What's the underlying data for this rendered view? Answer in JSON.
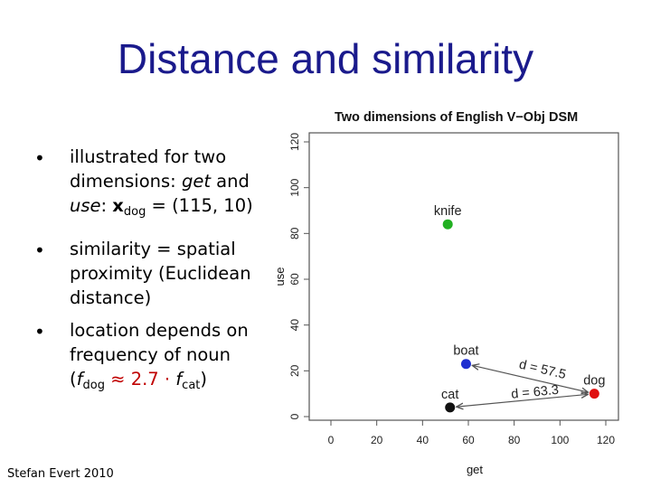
{
  "slide": {
    "title": "Distance and similarity",
    "footer": "Stefan Evert 2010",
    "bullets": [
      {
        "marker": "•",
        "line1": "illustrated for two",
        "line2a": "dimensions: ",
        "line2b": "get",
        "line2c": " and",
        "line3a": "use",
        "line3b": ": ",
        "line3c": "x",
        "line3d": "dog",
        "line3e": " = (115, 10)"
      },
      {
        "marker": "•",
        "line1": "similarity = spatial",
        "line2": "proximity (Euclidean",
        "line3": "distance)"
      },
      {
        "marker": "•",
        "line1": "location depends on",
        "line2": "frequency of noun",
        "line3a": "(",
        "line3b": "f",
        "line3c": "dog",
        "line3d": " ≈ 2.7 · ",
        "line3e": "f",
        "line3f": "cat",
        "line3g": ")"
      }
    ]
  },
  "chart_data": {
    "type": "scatter",
    "title": "Two dimensions of English V−Obj DSM",
    "xlabel": "get",
    "ylabel": "use",
    "xlim": [
      0,
      120
    ],
    "ylim": [
      0,
      120
    ],
    "xticks": [
      "0",
      "20",
      "40",
      "60",
      "80",
      "100",
      "120"
    ],
    "yticks": [
      "0",
      "20",
      "40",
      "60",
      "80",
      "100",
      "120"
    ],
    "points": [
      {
        "label": "knife",
        "x": 51,
        "y": 84,
        "color": "#22b022"
      },
      {
        "label": "boat",
        "x": 59,
        "y": 23,
        "color": "#1f2fd0"
      },
      {
        "label": "dog",
        "x": 115,
        "y": 10,
        "color": "#e01010"
      },
      {
        "label": "cat",
        "x": 52,
        "y": 4,
        "color": "#111111"
      }
    ],
    "distances": [
      {
        "label": "d = 57.5",
        "from": "boat",
        "to": "dog"
      },
      {
        "label": "d = 63.3",
        "from": "cat",
        "to": "dog"
      }
    ]
  }
}
